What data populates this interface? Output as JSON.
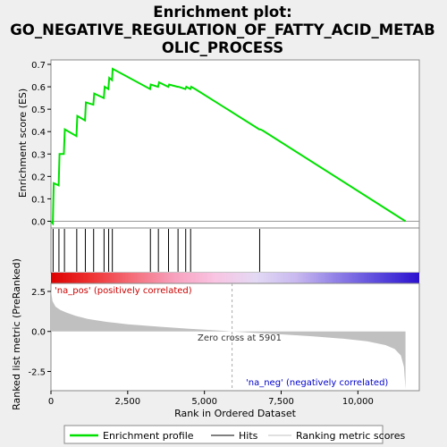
{
  "chart_data": {
    "type": "line",
    "title_lines": [
      "Enrichment plot:",
      "GO_NEGATIVE_REGULATION_OF_FATTY_ACID_METAB",
      "OLIC_PROCESS"
    ],
    "es_panel": {
      "ylabel": "Enrichment score (ES)",
      "ylim": [
        -0.03,
        0.72
      ],
      "yticks": [
        "0.0",
        "0.1",
        "0.2",
        "0.3",
        "0.4",
        "0.5",
        "0.6",
        "0.7"
      ],
      "ytick_values": [
        0.0,
        0.1,
        0.2,
        0.3,
        0.4,
        0.5,
        0.6,
        0.7
      ],
      "series": [
        {
          "name": "Enrichment profile",
          "color": "#00e000",
          "x": [
            0,
            60,
            90,
            250,
            280,
            420,
            450,
            830,
            860,
            1110,
            1140,
            1380,
            1410,
            1720,
            1750,
            1870,
            1900,
            1990,
            2010,
            3230,
            3250,
            3490,
            3520,
            3820,
            3850,
            4130,
            4160,
            4380,
            4410,
            4540,
            4570,
            4700,
            6790,
            6820,
            6900,
            11550
          ],
          "y": [
            0.0,
            -0.01,
            0.17,
            0.16,
            0.3,
            0.3,
            0.41,
            0.38,
            0.47,
            0.45,
            0.53,
            0.52,
            0.57,
            0.55,
            0.6,
            0.59,
            0.64,
            0.63,
            0.68,
            0.59,
            0.61,
            0.6,
            0.62,
            0.6,
            0.61,
            0.6,
            0.6,
            0.59,
            0.6,
            0.59,
            0.6,
            0.59,
            0.41,
            0.41,
            0.405,
            0.0
          ]
        }
      ]
    },
    "hits": {
      "name": "Hits",
      "x": [
        70,
        260,
        440,
        840,
        1120,
        1390,
        1730,
        1880,
        2000,
        3240,
        3500,
        3830,
        4140,
        4390,
        4550,
        6800
      ]
    },
    "ranked_panel": {
      "ylabel": "Ranked list metric (PreRanked)",
      "xlabel": "Rank in Ordered Dataset",
      "ylim": [
        -3.7,
        3.0
      ],
      "yticks": [
        "2.5",
        "0.0",
        "-2.5"
      ],
      "ytick_values": [
        2.5,
        0.0,
        -2.5
      ],
      "series_name": "Ranking metric scores",
      "pos_label": "'na_pos' (positively correlated)",
      "neg_label": "'na_neg' (negatively correlated)",
      "zero_cross_label": "Zero cross at 5901",
      "zero_cross": 5901,
      "metric_x": [
        0,
        50,
        150,
        300,
        500,
        800,
        1200,
        1800,
        2500,
        3500,
        4500,
        5500,
        5901,
        6500,
        7500,
        8500,
        9500,
        10300,
        10900,
        11200,
        11400,
        11500,
        11550
      ],
      "metric_y": [
        2.6,
        1.9,
        1.55,
        1.35,
        1.18,
        0.98,
        0.78,
        0.6,
        0.45,
        0.3,
        0.17,
        0.05,
        0.0,
        -0.07,
        -0.18,
        -0.3,
        -0.45,
        -0.62,
        -0.85,
        -1.1,
        -1.5,
        -2.2,
        -3.6
      ]
    },
    "xaxis": {
      "xlim": [
        0,
        12000
      ],
      "xticks": [
        "0",
        "2,500",
        "5,000",
        "7,500",
        "10,000"
      ],
      "xtick_values": [
        0,
        2500,
        5000,
        7500,
        10000
      ]
    },
    "colorbar_stops": [
      "#dd0000",
      "#ee3333",
      "#f46e7a",
      "#f7a0bd",
      "#f9c4e2",
      "#e3d9f4",
      "#c8b8ef",
      "#8f7fe6",
      "#5a49dc",
      "#2b10cf"
    ],
    "legend": {
      "placement": "bottom",
      "items": [
        {
          "label": "Enrichment profile",
          "color": "#00e000"
        },
        {
          "label": "Hits",
          "color": "#000000"
        },
        {
          "label": "Ranking metric scores",
          "color": "#c0c0c0"
        }
      ]
    }
  }
}
